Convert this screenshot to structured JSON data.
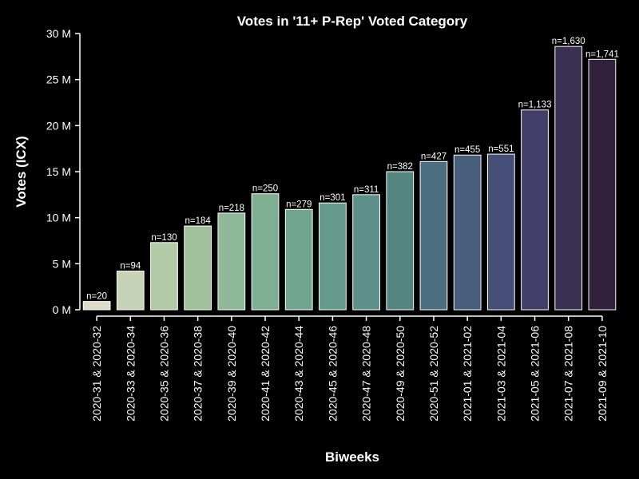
{
  "chart_data": {
    "type": "bar",
    "title": "Votes in '11+ P-Rep' Voted Category",
    "xlabel": "Biweeks",
    "ylabel": "Votes (ICX)",
    "ylim": [
      0,
      30
    ],
    "y_unit": "M",
    "yticks": [
      "0 M",
      "5 M",
      "10 M",
      "15 M",
      "20 M",
      "25 M",
      "30 M"
    ],
    "grid": false,
    "legend": "none",
    "categories": [
      "2020-31 & 2020-32",
      "2020-33 & 2020-34",
      "2020-35 & 2020-36",
      "2020-37 & 2020-38",
      "2020-39 & 2020-40",
      "2020-41 & 2020-42",
      "2020-43 & 2020-44",
      "2020-45 & 2020-46",
      "2020-47 & 2020-48",
      "2020-49 & 2020-50",
      "2020-51 & 2020-52",
      "2021-01 & 2021-02",
      "2021-03 & 2021-04",
      "2021-05 & 2021-06",
      "2021-07 & 2021-08",
      "2021-09 & 2021-10"
    ],
    "values": [
      0.9,
      4.2,
      7.3,
      9.1,
      10.5,
      12.6,
      10.9,
      11.6,
      12.5,
      15.0,
      16.1,
      16.8,
      16.9,
      21.7,
      28.6,
      27.2
    ],
    "data_labels": [
      "n=20",
      "n=94",
      "n=130",
      "n=184",
      "n=218",
      "n=250",
      "n=279",
      "n=301",
      "n=311",
      "n=382",
      "n=427",
      "n=455",
      "n=551",
      "n=1,133",
      "n=1,630",
      "n=1,741"
    ],
    "colors": [
      "#dcdcc8",
      "#c7d3b6",
      "#b3caa6",
      "#a0c19b",
      "#8eb897",
      "#7faf93",
      "#72a590",
      "#669b8c",
      "#5c9088",
      "#538480",
      "#4b6f80",
      "#485f7c",
      "#454e77",
      "#413f68",
      "#3a3152",
      "#31213d"
    ]
  }
}
